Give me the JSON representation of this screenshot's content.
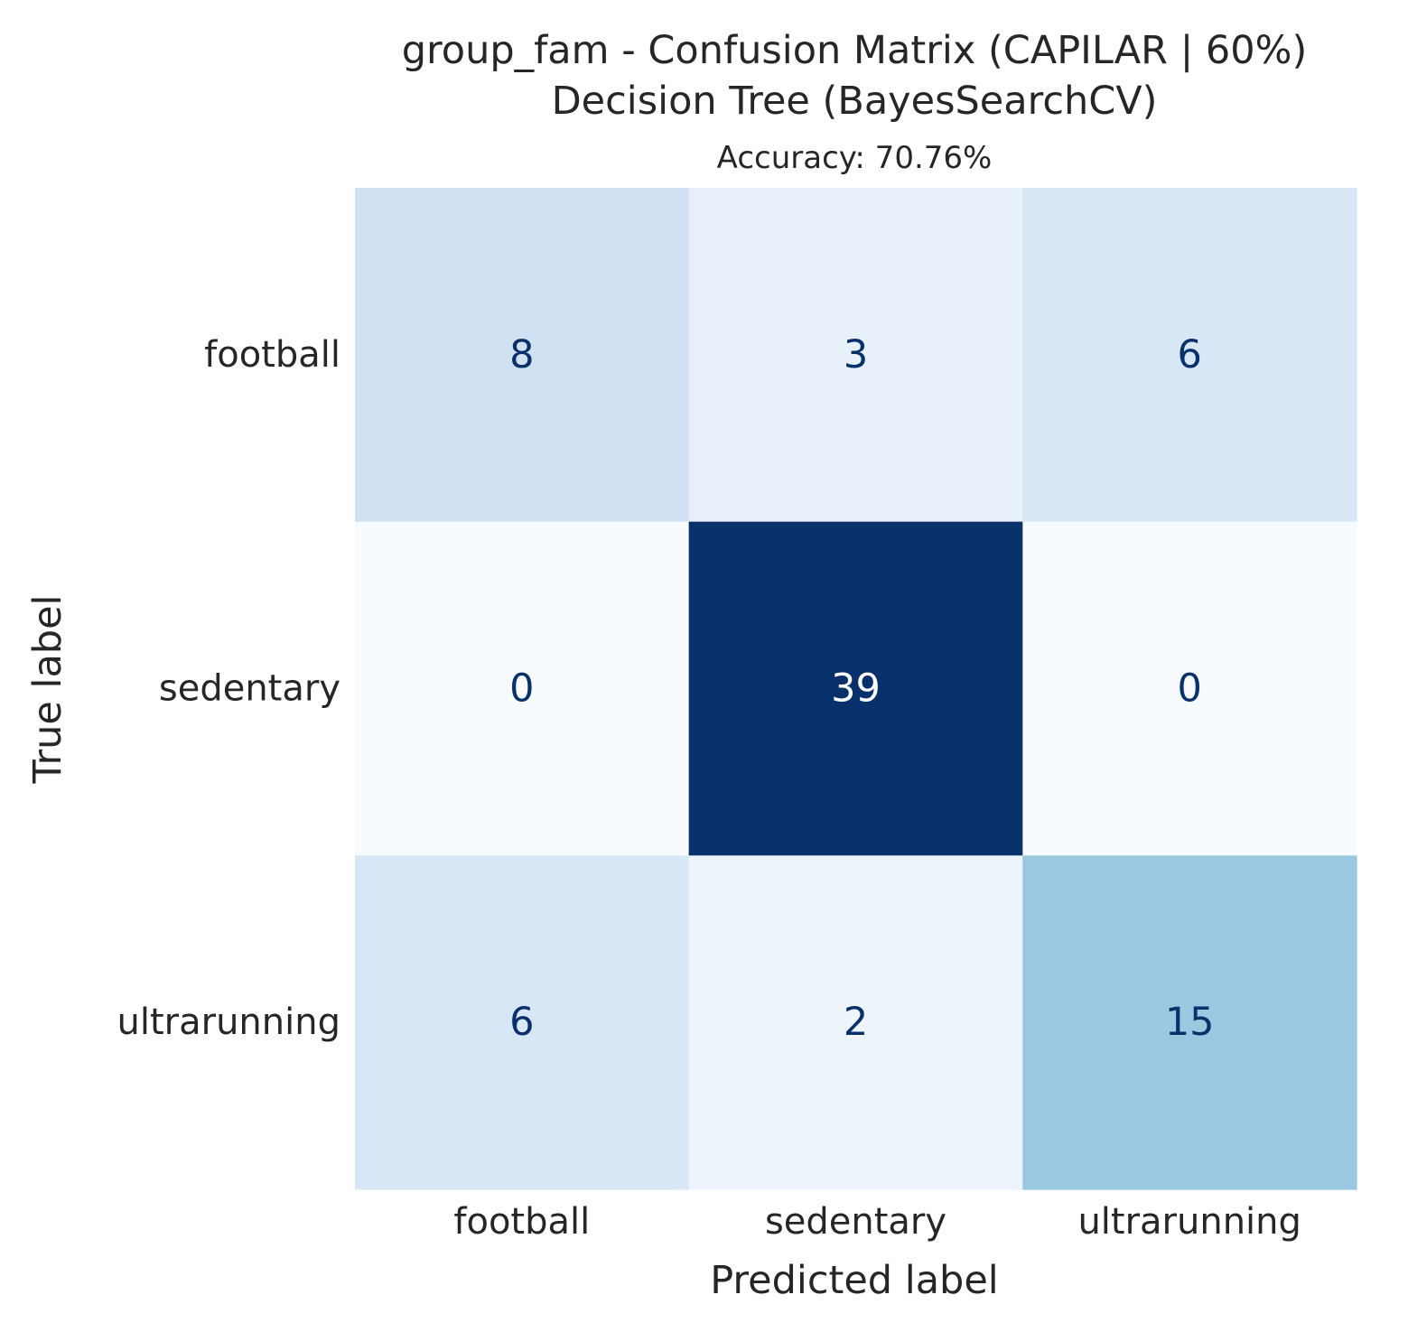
{
  "chart_data": {
    "type": "heatmap",
    "title": "group_fam - Confusion Matrix (CAPILAR | 60%)",
    "subtitle": "Decision Tree (BayesSearchCV)",
    "axes_title": "Accuracy: 70.76%",
    "xlabel": "Predicted label",
    "ylabel": "True label",
    "x_categories": [
      "football",
      "sedentary",
      "ultrarunning"
    ],
    "y_categories": [
      "football",
      "sedentary",
      "ultrarunning"
    ],
    "matrix": [
      [
        8,
        3,
        6
      ],
      [
        0,
        39,
        0
      ],
      [
        6,
        2,
        15
      ]
    ],
    "colormap": "Blues",
    "vmin": 0,
    "vmax": 39,
    "colorbar": false,
    "grid": false,
    "colors": {
      "text_dark": "#08306b",
      "text_light": "#ffffff",
      "label_text": "#262626"
    }
  }
}
